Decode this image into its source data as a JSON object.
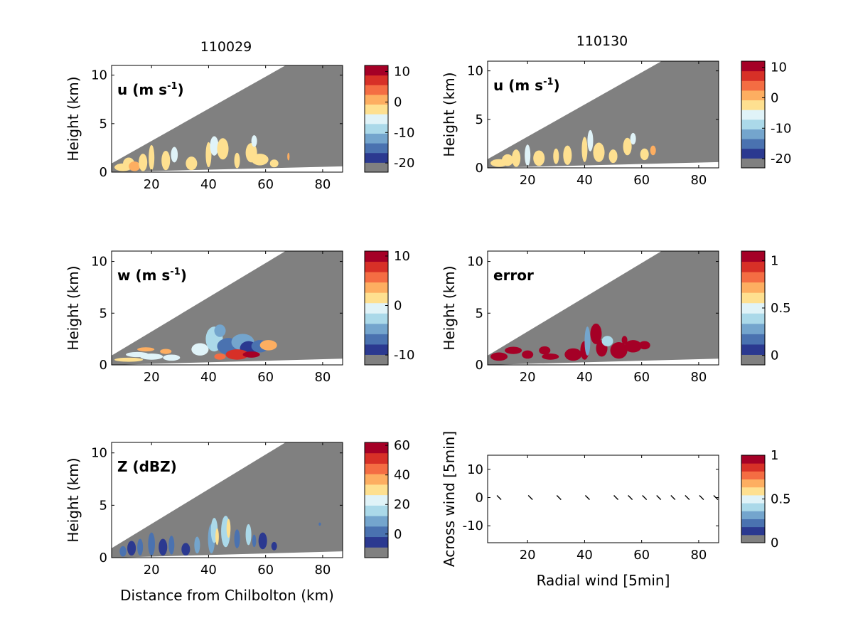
{
  "titles": {
    "left": "110029",
    "right": "110130"
  },
  "colormap": [
    "#808080",
    "#2b3990",
    "#4a72b0",
    "#74a5cd",
    "#abd9e9",
    "#e0f3f8",
    "#fee090",
    "#fdae61",
    "#f46d43",
    "#d73027",
    "#a50026"
  ],
  "chart_data": [
    {
      "id": "u-110029",
      "type": "heatmap",
      "panel_label_main": "u (m s",
      "panel_label_sup": "-1",
      "panel_label_end": ")",
      "xlabel": "",
      "ylabel": "Height (km)",
      "xlim": [
        6,
        87
      ],
      "ylim": [
        0,
        11
      ],
      "x_ticks": [
        20,
        40,
        60,
        80
      ],
      "y_ticks": [
        0,
        5,
        10
      ],
      "colorbar": {
        "range": [
          -23,
          12
        ],
        "ticks": [
          10,
          0,
          -10,
          -20
        ]
      }
    },
    {
      "id": "u-110130",
      "type": "heatmap",
      "panel_label_main": "u (m s",
      "panel_label_sup": "-1",
      "panel_label_end": ")",
      "xlabel": "",
      "ylabel": "Height (km)",
      "xlim": [
        6,
        87
      ],
      "ylim": [
        0,
        11
      ],
      "x_ticks": [
        20,
        40,
        60,
        80
      ],
      "y_ticks": [
        0,
        5,
        10
      ],
      "colorbar": {
        "range": [
          -23,
          12
        ],
        "ticks": [
          10,
          0,
          -10,
          -20
        ]
      }
    },
    {
      "id": "w-110029",
      "type": "heatmap",
      "panel_label_main": "w (m s",
      "panel_label_sup": "-1",
      "panel_label_end": ")",
      "xlabel": "",
      "ylabel": "Height (km)",
      "xlim": [
        6,
        87
      ],
      "ylim": [
        0,
        11
      ],
      "x_ticks": [
        20,
        40,
        60,
        80
      ],
      "y_ticks": [
        0,
        5,
        10
      ],
      "colorbar": {
        "range": [
          -12,
          11
        ],
        "ticks": [
          10,
          0,
          -10
        ]
      }
    },
    {
      "id": "error-110130",
      "type": "heatmap",
      "panel_label_main": "error",
      "panel_label_sup": "",
      "panel_label_end": "",
      "xlabel": "",
      "ylabel": "Height (km)",
      "xlim": [
        6,
        87
      ],
      "ylim": [
        0,
        11
      ],
      "x_ticks": [
        20,
        40,
        60,
        80
      ],
      "y_ticks": [
        0,
        5,
        10
      ],
      "colorbar": {
        "range": [
          -0.1,
          1.1
        ],
        "ticks": [
          1,
          0.5,
          0
        ]
      }
    },
    {
      "id": "z-110029",
      "type": "heatmap",
      "panel_label_main": "Z (dBZ)",
      "panel_label_sup": "",
      "panel_label_end": "",
      "xlabel": "Distance from Chilbolton (km)",
      "ylabel": "Height (km)",
      "xlim": [
        6,
        87
      ],
      "ylim": [
        0,
        11
      ],
      "x_ticks": [
        20,
        40,
        60,
        80
      ],
      "y_ticks": [
        0,
        5,
        10
      ],
      "colorbar": {
        "range": [
          -16,
          62
        ],
        "ticks": [
          60,
          40,
          20,
          0
        ]
      }
    },
    {
      "id": "wind-110130",
      "type": "scatter",
      "panel_label_main": "",
      "panel_label_sup": "",
      "panel_label_end": "",
      "xlabel": "Radial wind [5min]",
      "ylabel": "Across wind [5min]",
      "xlim": [
        6,
        87
      ],
      "ylim": [
        -16,
        15
      ],
      "x_ticks": [
        20,
        40,
        60,
        80
      ],
      "y_ticks": [
        -10,
        0,
        10
      ],
      "arrows_x": [
        10,
        21,
        31,
        41,
        51,
        56,
        61,
        66,
        71,
        76,
        81,
        86
      ],
      "arrows_y": [
        0,
        0,
        0,
        0,
        0,
        0,
        0,
        0,
        0,
        0,
        0,
        0
      ],
      "colorbar": {
        "range": [
          0,
          1
        ],
        "ticks": [
          1,
          0.5,
          0
        ]
      }
    }
  ]
}
